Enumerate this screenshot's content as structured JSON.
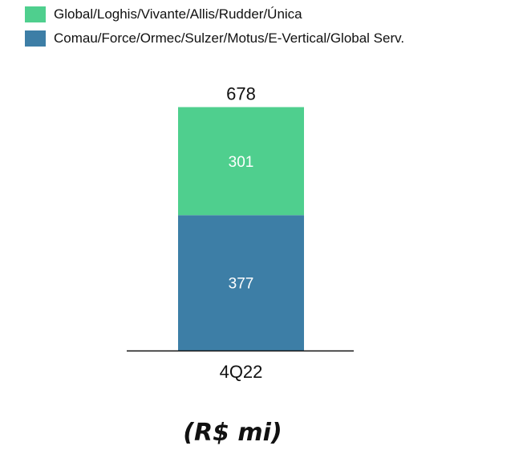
{
  "chart_data": {
    "type": "bar",
    "stacked": true,
    "categories": [
      "4Q22"
    ],
    "series": [
      {
        "name": "Comau/Force/Ormec/Sulzer/Motus/E-Vertical/Global Serv.",
        "values": [
          377
        ],
        "color": "#3d7ea6"
      },
      {
        "name": "Global/Loghis/Vivante/Allis/Rudder/Única",
        "values": [
          301
        ],
        "color": "#4fcf8e"
      }
    ],
    "totals": [
      678
    ],
    "title": "",
    "xlabel": "",
    "ylabel": "",
    "unit_note": "(R$ mi)",
    "legend_position": "top-left",
    "grid": false
  }
}
